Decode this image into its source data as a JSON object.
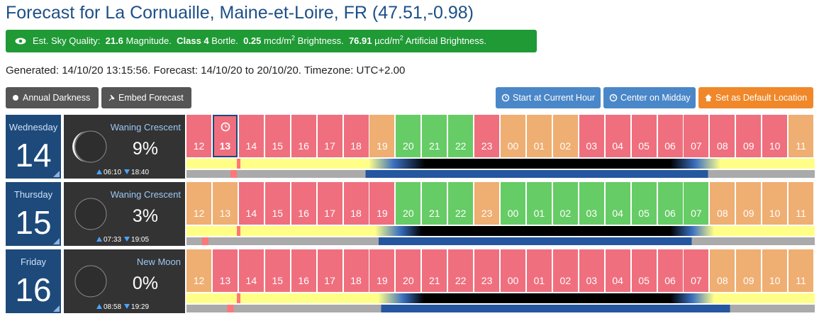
{
  "header": {
    "title": "Forecast for La Cornuaille, Maine-et-Loire, FR (47.51,-0.98)"
  },
  "sky_quality": {
    "label": "Est. Sky Quality:",
    "magnitude": "21.6",
    "magnitude_unit": "Magnitude.",
    "bortle": "Class 4",
    "bortle_unit": "Bortle.",
    "brightness": "0.25",
    "brightness_unit": "mcd/m",
    "brightness_exp": "2",
    "brightness_label": "Brightness.",
    "artificial": "76.91",
    "artificial_unit": "µcd/m",
    "artificial_exp": "2",
    "artificial_label": "Artificial Brightness."
  },
  "generated": "Generated: 14/10/20 13:15:56. Forecast: 14/10/20 to 20/10/20. Timezone: UTC+2.00",
  "buttons": {
    "annual_darkness": "Annual Darkness",
    "embed_forecast": "Embed Forecast",
    "start_current": "Start at Current Hour",
    "center_midday": "Center on Midday",
    "set_default": "Set as Default Location"
  },
  "days": [
    {
      "weekday": "Wednesday",
      "date": "14",
      "moon_phase": "Waning Crescent",
      "illumination": "9%",
      "moonrise": "06:10",
      "moonset": "18:40",
      "current": "13",
      "hours": [
        "12",
        "13",
        "14",
        "15",
        "16",
        "17",
        "18",
        "19",
        "20",
        "21",
        "22",
        "23",
        "00",
        "01",
        "02",
        "03",
        "04",
        "05",
        "06",
        "07",
        "08",
        "09",
        "10",
        "11"
      ],
      "colors": [
        "#ef6f7e",
        "#ef6f7e",
        "#ef6f7e",
        "#ef6f7e",
        "#ef6f7e",
        "#ef6f7e",
        "#ef6f7e",
        "#efae72",
        "#66cc66",
        "#66cc66",
        "#66cc66",
        "#ef6f7e",
        "#efae72",
        "#efae72",
        "#efae72",
        "#ef6f7e",
        "#ef6f7e",
        "#ef6f7e",
        "#ef6f7e",
        "#ef6f7e",
        "#ef6f7e",
        "#ef6f7e",
        "#ef6f7e",
        "#efae72"
      ]
    },
    {
      "weekday": "Thursday",
      "date": "15",
      "moon_phase": "Waning Crescent",
      "illumination": "3%",
      "moonrise": "07:33",
      "moonset": "19:05",
      "hours": [
        "12",
        "13",
        "14",
        "15",
        "16",
        "17",
        "18",
        "19",
        "20",
        "21",
        "22",
        "23",
        "00",
        "01",
        "02",
        "03",
        "04",
        "05",
        "06",
        "07",
        "08",
        "09",
        "10",
        "11"
      ],
      "colors": [
        "#efae72",
        "#efae72",
        "#ef6f7e",
        "#ef6f7e",
        "#ef6f7e",
        "#ef6f7e",
        "#ef6f7e",
        "#ef6f7e",
        "#66cc66",
        "#66cc66",
        "#66cc66",
        "#efae72",
        "#66cc66",
        "#66cc66",
        "#66cc66",
        "#66cc66",
        "#66cc66",
        "#66cc66",
        "#66cc66",
        "#66cc66",
        "#efae72",
        "#efae72",
        "#efae72",
        "#efae72"
      ]
    },
    {
      "weekday": "Friday",
      "date": "16",
      "moon_phase": "New Moon",
      "illumination": "0%",
      "moonrise": "08:58",
      "moonset": "19:29",
      "hours": [
        "12",
        "13",
        "14",
        "15",
        "16",
        "17",
        "18",
        "19",
        "20",
        "21",
        "22",
        "23",
        "00",
        "01",
        "02",
        "03",
        "04",
        "05",
        "06",
        "07",
        "08",
        "09",
        "10",
        "11"
      ],
      "colors": [
        "#efae72",
        "#ef6f7e",
        "#ef6f7e",
        "#ef6f7e",
        "#ef6f7e",
        "#ef6f7e",
        "#ef6f7e",
        "#ef6f7e",
        "#ef6f7e",
        "#ef6f7e",
        "#ef6f7e",
        "#ef6f7e",
        "#ef6f7e",
        "#ef6f7e",
        "#ef6f7e",
        "#ef6f7e",
        "#ef6f7e",
        "#ef6f7e",
        "#ef6f7e",
        "#ef6f7e",
        "#efae72",
        "#efae72",
        "#efae72",
        "#efae72"
      ]
    }
  ]
}
